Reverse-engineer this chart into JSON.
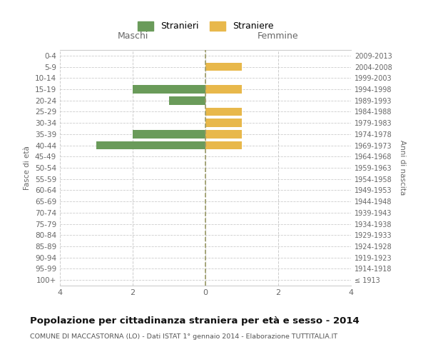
{
  "age_groups": [
    "100+",
    "95-99",
    "90-94",
    "85-89",
    "80-84",
    "75-79",
    "70-74",
    "65-69",
    "60-64",
    "55-59",
    "50-54",
    "45-49",
    "40-44",
    "35-39",
    "30-34",
    "25-29",
    "20-24",
    "15-19",
    "10-14",
    "5-9",
    "0-4"
  ],
  "birth_years": [
    "≤ 1913",
    "1914-1918",
    "1919-1923",
    "1924-1928",
    "1929-1933",
    "1934-1938",
    "1939-1943",
    "1944-1948",
    "1949-1953",
    "1954-1958",
    "1959-1963",
    "1964-1968",
    "1969-1973",
    "1974-1978",
    "1979-1983",
    "1984-1988",
    "1989-1993",
    "1994-1998",
    "1999-2003",
    "2004-2008",
    "2009-2013"
  ],
  "males": [
    0,
    0,
    0,
    0,
    0,
    0,
    0,
    0,
    0,
    0,
    0,
    0,
    3,
    2,
    0,
    0,
    1,
    2,
    0,
    0,
    0
  ],
  "females": [
    0,
    0,
    0,
    0,
    0,
    0,
    0,
    0,
    0,
    0,
    0,
    0,
    1,
    1,
    1,
    1,
    0,
    1,
    0,
    1,
    0
  ],
  "male_color": "#6a9b5a",
  "female_color": "#e8b84b",
  "male_label": "Stranieri",
  "female_label": "Straniere",
  "title": "Popolazione per cittadinanza straniera per età e sesso - 2014",
  "subtitle": "COMUNE DI MACCASTORNA (LO) - Dati ISTAT 1° gennaio 2014 - Elaborazione TUTTITALIA.IT",
  "left_label": "Maschi",
  "right_label": "Femmine",
  "left_axis_label": "Fasce di età",
  "right_axis_label": "Anni di nascita",
  "xlim": 4,
  "background_color": "#ffffff",
  "grid_color": "#cccccc",
  "center_line_color": "#999966",
  "bar_height": 0.75
}
